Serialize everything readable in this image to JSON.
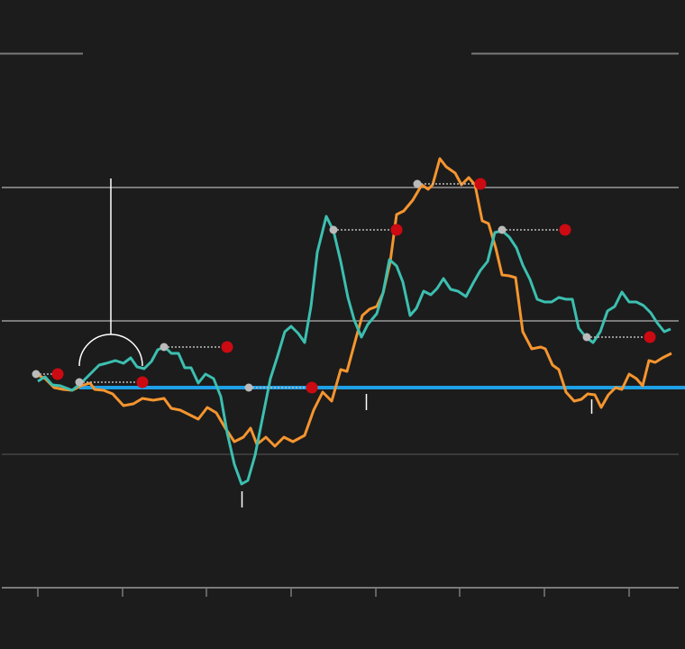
{
  "chart_data": {
    "type": "line",
    "xlim": [
      -42,
      711
    ],
    "ylim": [
      0,
      592
    ],
    "xticks": [
      0,
      94,
      187,
      281,
      375,
      468,
      562,
      656
    ],
    "yticks": [
      0,
      148,
      296,
      444
    ],
    "ytick_colors": [
      "#7a7a7a",
      "#3a3a3a",
      "#7a7a7a",
      "#7a7a7a"
    ],
    "grid": true,
    "reference_line": {
      "value": 222,
      "color": "#1ea0e6"
    },
    "series": [
      {
        "color": "#f5952f",
        "x": [
          -2,
          8,
          18,
          28,
          38,
          48,
          58,
          63,
          73,
          83,
          95,
          106,
          116,
          128,
          140,
          148,
          158,
          168,
          178,
          188,
          198,
          208,
          218,
          228,
          236,
          243,
          253,
          263,
          273,
          283,
          296,
          306,
          316,
          326,
          336,
          343,
          353,
          360,
          368,
          376,
          383,
          391,
          398,
          406,
          416,
          426,
          433,
          438,
          446,
          453,
          463,
          470,
          478,
          485,
          493,
          500,
          508,
          515,
          523,
          530,
          538,
          548,
          558,
          563,
          571,
          578,
          586,
          595,
          603,
          610,
          618,
          625,
          633,
          641,
          648,
          656,
          664,
          671,
          678,
          685,
          693,
          703
        ],
        "values": [
          237,
          232,
          222,
          220,
          219,
          224,
          227,
          220,
          219,
          215,
          202,
          204,
          210,
          208,
          210,
          199,
          197,
          192,
          187,
          200,
          194,
          177,
          162,
          167,
          177,
          159,
          167,
          157,
          167,
          162,
          169,
          197,
          217,
          207,
          242,
          240,
          277,
          302,
          309,
          312,
          327,
          362,
          414,
          418,
          430,
          447,
          442,
          447,
          476,
          467,
          460,
          447,
          455,
          447,
          407,
          404,
          377,
          347,
          346,
          344,
          284,
          265,
          267,
          265,
          247,
          242,
          217,
          207,
          209,
          215,
          214,
          200,
          214,
          222,
          220,
          237,
          232,
          224,
          252,
          250,
          255,
          260
        ]
      },
      {
        "color": "#3cbfb0",
        "x": [
          0,
          8,
          16,
          25,
          38,
          48,
          58,
          68,
          76,
          86,
          95,
          103,
          110,
          118,
          126,
          133,
          141,
          148,
          156,
          163,
          170,
          178,
          186,
          195,
          203,
          210,
          218,
          226,
          233,
          241,
          248,
          258,
          266,
          274,
          281,
          289,
          296,
          303,
          310,
          320,
          328,
          336,
          344,
          351,
          359,
          366,
          376,
          383,
          390,
          398,
          405,
          413,
          420,
          428,
          436,
          443,
          450,
          458,
          466,
          475,
          483,
          491,
          499,
          507,
          515,
          523,
          531,
          538,
          546,
          554,
          562,
          570,
          578,
          586,
          593,
          600,
          608,
          616,
          624,
          632,
          640,
          648,
          656,
          664,
          672,
          680,
          687,
          695,
          702
        ],
        "values": [
          229,
          234,
          225,
          224,
          219,
          227,
          237,
          247,
          249,
          252,
          249,
          255,
          245,
          243,
          251,
          264,
          267,
          260,
          260,
          244,
          244,
          227,
          237,
          232,
          212,
          172,
          137,
          115,
          119,
          147,
          182,
          232,
          257,
          284,
          290,
          282,
          272,
          312,
          372,
          412,
          396,
          362,
          322,
          297,
          278,
          292,
          304,
          327,
          364,
          357,
          339,
          302,
          310,
          329,
          325,
          332,
          343,
          331,
          329,
          323,
          338,
          352,
          362,
          394,
          396,
          389,
          377,
          358,
          342,
          320,
          317,
          317,
          322,
          320,
          320,
          288,
          278,
          272,
          284,
          307,
          312,
          328,
          317,
          317,
          313,
          305,
          294,
          284,
          287
        ]
      }
    ],
    "markers": {
      "start_color": "#bbbbbb",
      "end_color": "#cc0a12",
      "points": [
        {
          "x": -2,
          "x_end": 22,
          "y": 237
        },
        {
          "x": 46,
          "x_end": 116,
          "y": 228
        },
        {
          "x": 140,
          "x_end": 210,
          "y": 267
        },
        {
          "x": 234,
          "x_end": 304,
          "y": 222
        },
        {
          "x": 328,
          "x_end": 398,
          "y": 397
        },
        {
          "x": 421,
          "x_end": 491,
          "y": 448
        },
        {
          "x": 515,
          "x_end": 585,
          "y": 397
        },
        {
          "x": 609,
          "x_end": 679,
          "y": 278
        }
      ]
    }
  }
}
